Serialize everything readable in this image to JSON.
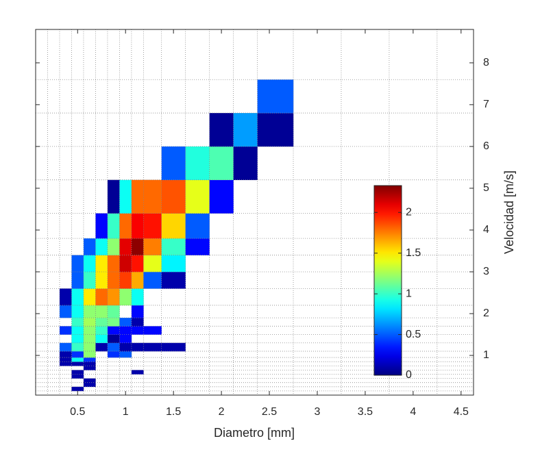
{
  "chart_data": {
    "type": "heatmap",
    "xlabel": "Diametro [mm]",
    "ylabel": "Velocidad [m/s]",
    "xlim": [
      0.062,
      4.63
    ],
    "ylim": [
      0.05,
      8.8
    ],
    "xticks": [
      0.5,
      1,
      1.5,
      2,
      2.5,
      3,
      3.5,
      4,
      4.5
    ],
    "yticks": [
      1,
      2,
      3,
      4,
      5,
      6,
      7,
      8
    ],
    "x_edges": [
      0.062,
      0.187,
      0.312,
      0.437,
      0.562,
      0.687,
      0.812,
      0.937,
      1.062,
      1.187,
      1.375,
      1.625,
      1.875,
      2.125,
      2.375,
      2.75,
      3.25,
      3.75,
      4.25
    ],
    "y_edges": [
      0.05,
      0.15,
      0.25,
      0.35,
      0.45,
      0.55,
      0.65,
      0.75,
      0.85,
      0.95,
      1.1,
      1.3,
      1.5,
      1.7,
      1.9,
      2.2,
      2.6,
      3.0,
      3.4,
      3.8,
      4.4,
      5.2,
      6.0,
      6.8,
      7.6,
      8.8
    ],
    "colormap": "jet",
    "clim": [
      0,
      2.33
    ],
    "colorbar_ticks": [
      0,
      0.5,
      1,
      1.5,
      2
    ],
    "grid": true,
    "z": [
      [
        null,
        null,
        null,
        null,
        null,
        null,
        null,
        null,
        null,
        null,
        null,
        null,
        null,
        null,
        null,
        null,
        null,
        null
      ],
      [
        null,
        null,
        null,
        0.1,
        null,
        null,
        null,
        null,
        null,
        null,
        null,
        null,
        null,
        null,
        null,
        null,
        null,
        null
      ],
      [
        null,
        null,
        null,
        null,
        0.1,
        null,
        null,
        null,
        null,
        null,
        null,
        null,
        null,
        null,
        null,
        null,
        null,
        null
      ],
      [
        null,
        null,
        null,
        null,
        0.1,
        null,
        null,
        null,
        null,
        null,
        null,
        null,
        null,
        null,
        null,
        null,
        null,
        null
      ],
      [
        null,
        null,
        null,
        0.1,
        null,
        null,
        null,
        null,
        null,
        null,
        null,
        null,
        null,
        null,
        null,
        null,
        null,
        null
      ],
      [
        null,
        null,
        null,
        0.1,
        null,
        null,
        null,
        null,
        0.1,
        null,
        null,
        null,
        null,
        null,
        null,
        null,
        null,
        null
      ],
      [
        null,
        null,
        null,
        null,
        0.1,
        null,
        null,
        null,
        null,
        null,
        null,
        null,
        null,
        null,
        null,
        null,
        null,
        null
      ],
      [
        null,
        null,
        0.1,
        0.1,
        0.1,
        null,
        null,
        null,
        null,
        null,
        null,
        null,
        null,
        null,
        null,
        null,
        null,
        null
      ],
      [
        null,
        null,
        0.1,
        0.9,
        0.4,
        null,
        null,
        null,
        null,
        null,
        null,
        null,
        null,
        null,
        null,
        null,
        null,
        null
      ],
      [
        null,
        null,
        0.1,
        0.4,
        1.2,
        null,
        0.4,
        0.5,
        null,
        null,
        null,
        null,
        null,
        null,
        null,
        null,
        null,
        null
      ],
      [
        null,
        null,
        0.5,
        1.0,
        1.2,
        0.1,
        0.5,
        0.1,
        0.1,
        0.1,
        0.1,
        null,
        null,
        null,
        null,
        null,
        null,
        null
      ],
      [
        null,
        null,
        null,
        0.9,
        1.2,
        0.9,
        0.05,
        0.3,
        null,
        null,
        null,
        null,
        null,
        null,
        null,
        null,
        null,
        null
      ],
      [
        null,
        null,
        0.4,
        0.9,
        1.2,
        1.0,
        0.3,
        0.3,
        0.3,
        0.3,
        null,
        null,
        null,
        null,
        null,
        null,
        null,
        null
      ],
      [
        null,
        null,
        null,
        1.0,
        1.25,
        1.1,
        1.15,
        0.5,
        0.1,
        null,
        null,
        null,
        null,
        null,
        null,
        null,
        null,
        null
      ],
      [
        null,
        null,
        0.5,
        0.9,
        1.2,
        1.2,
        1.1,
        null,
        0.3,
        null,
        null,
        null,
        null,
        null,
        null,
        null,
        null,
        null
      ],
      [
        null,
        null,
        0.1,
        0.9,
        1.5,
        1.8,
        1.7,
        1.2,
        0.9,
        null,
        null,
        null,
        null,
        null,
        null,
        null,
        null,
        null
      ],
      [
        null,
        null,
        null,
        0.5,
        1.0,
        1.5,
        1.8,
        1.9,
        1.65,
        0.5,
        0.1,
        null,
        null,
        null,
        null,
        null,
        null,
        null
      ],
      [
        null,
        null,
        null,
        0.5,
        0.9,
        1.5,
        1.8,
        2.15,
        2.0,
        1.4,
        0.85,
        null,
        null,
        null,
        null,
        null,
        null,
        null
      ],
      [
        null,
        null,
        null,
        null,
        0.5,
        0.9,
        1.2,
        2.1,
        2.3,
        1.75,
        1.0,
        0.3,
        null,
        null,
        null,
        null,
        null,
        null
      ],
      [
        null,
        null,
        null,
        null,
        null,
        0.3,
        1.0,
        1.8,
        2.05,
        2.0,
        1.55,
        0.5,
        null,
        null,
        null,
        null,
        null,
        null
      ],
      [
        null,
        null,
        null,
        null,
        null,
        null,
        0.05,
        0.9,
        1.8,
        1.8,
        1.85,
        1.4,
        0.3,
        null,
        null,
        null,
        null,
        null
      ],
      [
        null,
        null,
        null,
        null,
        null,
        null,
        null,
        null,
        null,
        null,
        0.5,
        0.95,
        1.05,
        0.05,
        null,
        null,
        null,
        null
      ],
      [
        null,
        null,
        null,
        null,
        null,
        null,
        null,
        null,
        null,
        null,
        null,
        null,
        0.05,
        0.65,
        0.05,
        null,
        null,
        null
      ],
      [
        null,
        null,
        null,
        null,
        null,
        null,
        null,
        null,
        null,
        null,
        null,
        null,
        null,
        null,
        0.5,
        null,
        null,
        null
      ],
      [
        null,
        null,
        null,
        null,
        null,
        null,
        null,
        null,
        null,
        null,
        null,
        null,
        null,
        null,
        null,
        null,
        null,
        null
      ]
    ]
  }
}
